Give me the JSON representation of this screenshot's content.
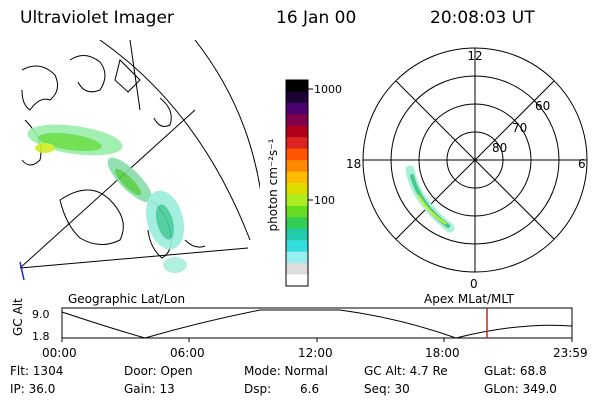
{
  "header": {
    "title": "Ultraviolet Imager",
    "date": "16 Jan 00",
    "time": "20:08:03 UT"
  },
  "map_panel": {
    "label": "Geographic Lat/Lon"
  },
  "colorbar": {
    "unit_label": "photon cm⁻²s⁻¹",
    "ticks": [
      "1000",
      "100"
    ],
    "colors": [
      "#000000",
      "#1a0033",
      "#4b006e",
      "#80004a",
      "#b0001a",
      "#dd2222",
      "#ff5500",
      "#ff8800",
      "#ffbb00",
      "#dddd00",
      "#aaee22",
      "#66dd22",
      "#33cc55",
      "#22ccaa",
      "#33dddd",
      "#99eeee",
      "#dddddd",
      "#ffffff"
    ]
  },
  "polar_panel": {
    "label": "Apex MLat/MLT",
    "mlt_labels": {
      "top": "12",
      "left": "18",
      "right": "6",
      "bottom": "0"
    },
    "lat_labels": [
      "60",
      "70",
      "80"
    ]
  },
  "altitude_plot": {
    "ylabel": "GC Alt",
    "y_ticks": [
      "9.0",
      "1.8"
    ],
    "x_ticks": [
      "00:00",
      "06:00",
      "12:00",
      "18:00",
      "23:59"
    ],
    "marker_color": "#cc2222"
  },
  "info": {
    "flt": "Flt: 1304",
    "ip": "IP: 36.0",
    "door": "Door: Open",
    "gain": "Gain: 13",
    "mode": "Mode: Normal",
    "dsp_label": "Dsp:",
    "dsp_value": "6.6",
    "gc_alt": "GC Alt: 4.7 Re",
    "seq": "Seq: 30",
    "glat": "GLat: 68.8",
    "glon": "GLon: 349.0"
  }
}
